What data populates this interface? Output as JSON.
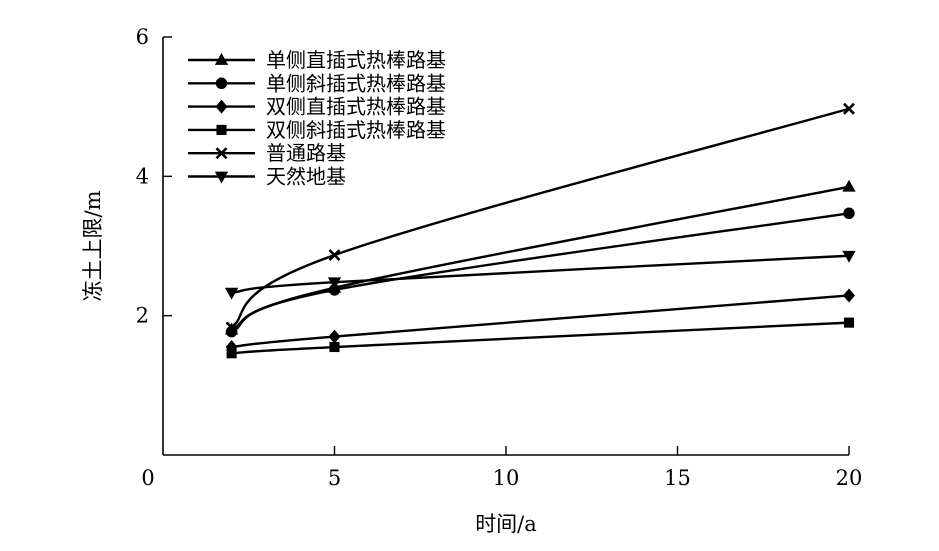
{
  "chart_data": {
    "type": "line",
    "xlabel": "时间/a",
    "ylabel": "冻土上限/m",
    "xlim": [
      0,
      20
    ],
    "ylim": [
      0,
      6
    ],
    "x_ticks": [
      0,
      5,
      10,
      15,
      20
    ],
    "y_ticks": [
      2,
      4,
      6
    ],
    "grid": false,
    "legend_position": "top-left",
    "series": [
      {
        "name": "单侧直插式热棒路基",
        "marker": "triangle-up",
        "x": [
          2,
          5,
          20
        ],
        "y": [
          1.8,
          2.4,
          3.85
        ]
      },
      {
        "name": "单侧斜插式热棒路基",
        "marker": "circle",
        "x": [
          2,
          5,
          20
        ],
        "y": [
          1.77,
          2.37,
          3.47
        ]
      },
      {
        "name": "双侧直插式热棒路基",
        "marker": "diamond",
        "x": [
          2,
          5,
          20
        ],
        "y": [
          1.55,
          1.7,
          2.29
        ]
      },
      {
        "name": "双侧斜插式热棒路基",
        "marker": "square",
        "x": [
          2,
          5,
          20
        ],
        "y": [
          1.46,
          1.55,
          1.9
        ]
      },
      {
        "name": "普通路基",
        "marker": "x",
        "x": [
          2,
          5,
          20
        ],
        "y": [
          1.83,
          2.87,
          4.97
        ]
      },
      {
        "name": "天然地基",
        "marker": "triangle-down",
        "x": [
          2,
          5,
          20
        ],
        "y": [
          2.33,
          2.48,
          2.86
        ]
      }
    ]
  }
}
